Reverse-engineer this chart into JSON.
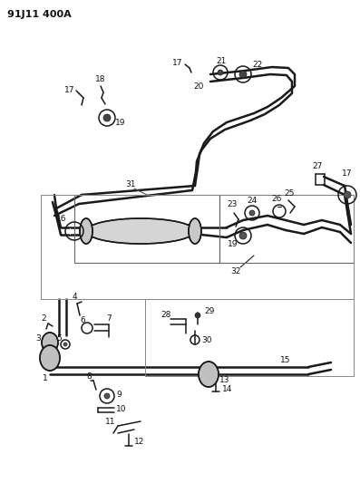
{
  "title": "91J11 400A",
  "bg_color": "#ffffff",
  "line_color": "#1a1a1a",
  "title_fontsize": 8,
  "label_fontsize": 6.5,
  "fig_width": 3.97,
  "fig_height": 5.33,
  "dpi": 100
}
